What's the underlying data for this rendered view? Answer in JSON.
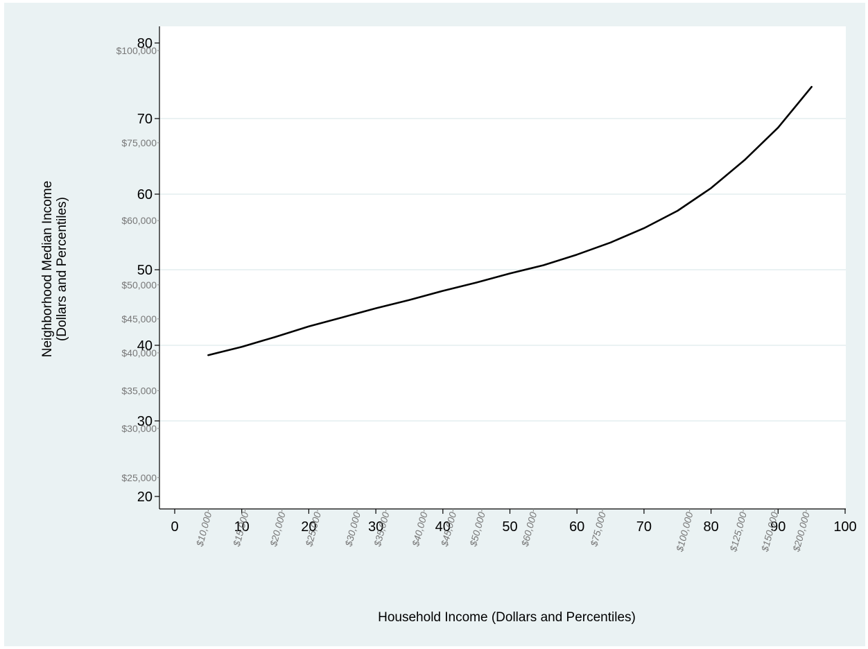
{
  "chart_data": {
    "type": "line",
    "xlabel": "Household Income (Dollars and Percentiles)",
    "ylabel_line1": "Neighborhood Median Income",
    "ylabel_line2": "(Dollars and Percentiles)",
    "xlim": [
      0,
      100
    ],
    "ylim": [
      20,
      80
    ],
    "x_ticks": [
      0,
      10,
      20,
      30,
      40,
      50,
      60,
      70,
      80,
      90,
      100
    ],
    "y_ticks": [
      20,
      30,
      40,
      50,
      60,
      70,
      80
    ],
    "x_dollar_ticks": [
      {
        "label": "$10,000",
        "x": 5
      },
      {
        "label": "$15,000",
        "x": 10.5
      },
      {
        "label": "$20,000",
        "x": 16
      },
      {
        "label": "$25,000",
        "x": 21.3
      },
      {
        "label": "$30,000",
        "x": 27.2
      },
      {
        "label": "$35,000",
        "x": 31.5
      },
      {
        "label": "$40,000",
        "x": 37.2
      },
      {
        "label": "$45,000",
        "x": 41.5
      },
      {
        "label": "$50,000",
        "x": 45.8
      },
      {
        "label": "$60,000",
        "x": 53.5
      },
      {
        "label": "$75,000",
        "x": 63.8
      },
      {
        "label": "$100,000",
        "x": 76.8
      },
      {
        "label": "$125,000",
        "x": 84.8
      },
      {
        "label": "$150,000",
        "x": 89.5
      },
      {
        "label": "$200,000",
        "x": 94.2
      }
    ],
    "y_dollar_ticks": [
      {
        "label": "$25,000",
        "y": 22.5
      },
      {
        "label": "$30,000",
        "y": 29
      },
      {
        "label": "$35,000",
        "y": 34
      },
      {
        "label": "$40,000",
        "y": 39
      },
      {
        "label": "$45,000",
        "y": 43.5
      },
      {
        "label": "$50,000",
        "y": 48
      },
      {
        "label": "$60,000",
        "y": 56.5
      },
      {
        "label": "$75,000",
        "y": 66.8
      },
      {
        "label": "$100,000",
        "y": 79
      }
    ],
    "grid": true,
    "series": [
      {
        "x": [
          5,
          10,
          15,
          20,
          25,
          30,
          35,
          40,
          45,
          50,
          55,
          60,
          65,
          70,
          75,
          80,
          85,
          90,
          95
        ],
        "y": [
          38.7,
          39.8,
          41.1,
          42.5,
          43.7,
          44.9,
          46.0,
          47.2,
          48.3,
          49.5,
          50.6,
          52.0,
          53.6,
          55.5,
          57.8,
          60.8,
          64.5,
          68.8,
          74.2
        ]
      }
    ],
    "colors": {
      "line": "#000000",
      "grid": "#eaf2f3",
      "frame_bg": "#eaf2f3",
      "plot_bg": "#ffffff",
      "dollar_text": "#777777"
    }
  }
}
